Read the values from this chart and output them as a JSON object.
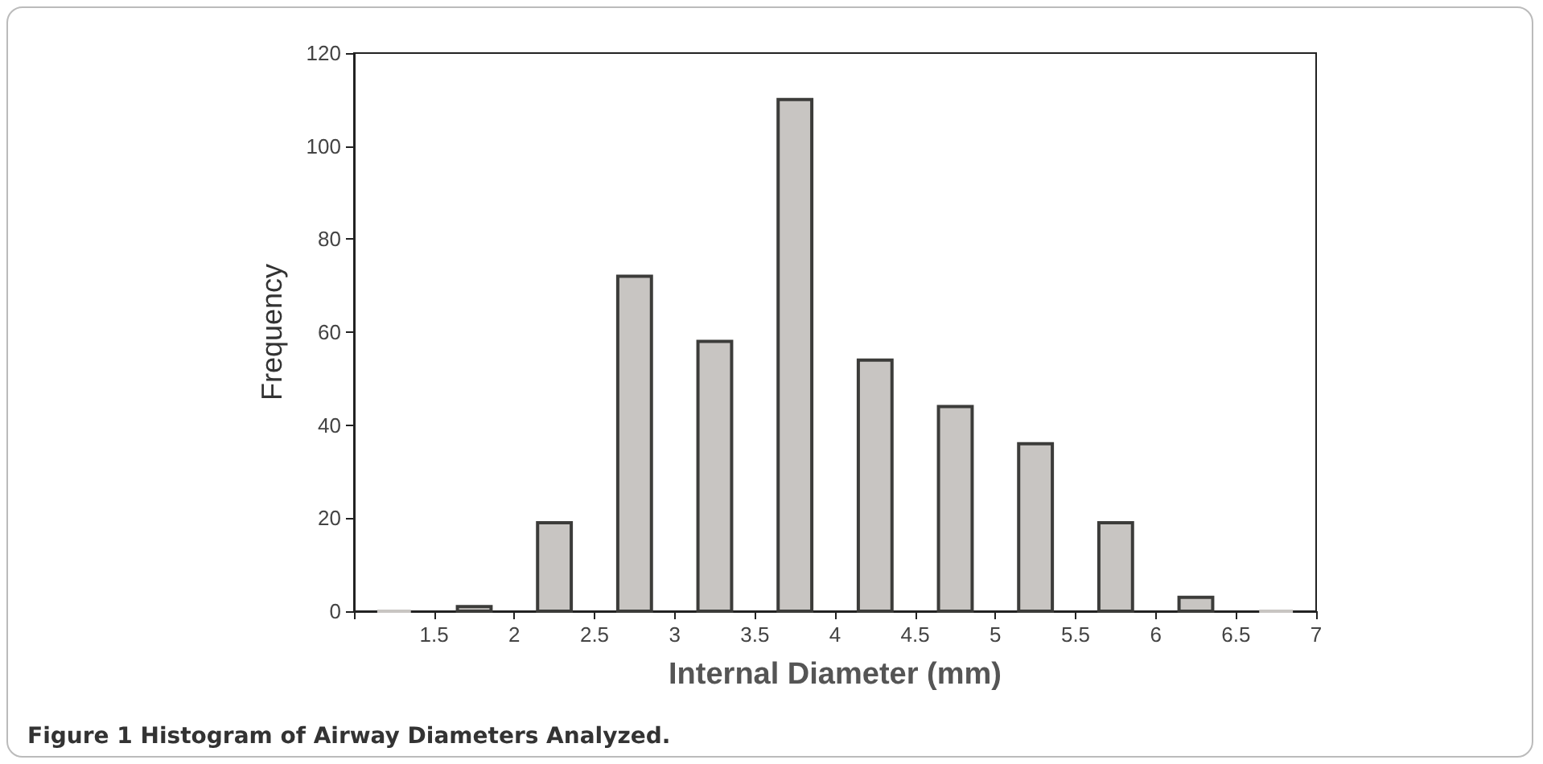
{
  "chart_data": {
    "type": "histogram",
    "bins": [
      1,
      1.5,
      2,
      2.5,
      3,
      3.5,
      4,
      4.5,
      5,
      5.5,
      6,
      6.5,
      7
    ],
    "values": [
      0,
      1,
      19,
      72,
      58,
      110,
      54,
      44,
      36,
      19,
      3,
      0
    ],
    "color": "#c8c5c2",
    "xlim": [
      1,
      7
    ],
    "xticks": [
      {
        "value": 1,
        "label": null
      },
      1.5,
      2,
      2.5,
      3,
      3.5,
      4,
      4.5,
      5,
      5.5,
      6,
      6.5,
      7
    ],
    "ylim": [
      0,
      120
    ],
    "yticks": [
      0,
      20,
      40,
      60,
      80,
      100,
      120
    ],
    "xlabel": "Internal Diameter (mm)",
    "ylabel": "Frequency",
    "grid": false,
    "annotations": [
      "Figure 1 Histogram of Airway Diameters Analyzed."
    ]
  }
}
